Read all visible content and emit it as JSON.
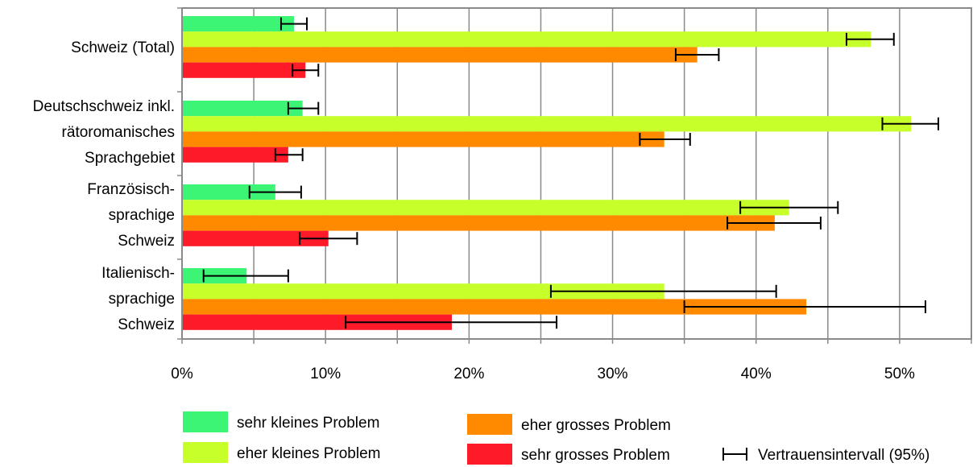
{
  "chart_data": {
    "type": "bar",
    "orientation": "horizontal",
    "grid": true,
    "xlim": [
      0,
      55
    ],
    "xticks": [
      0,
      10,
      20,
      30,
      40,
      50
    ],
    "tick_suffix": "%",
    "categories": [
      [
        "Schweiz (Total)"
      ],
      [
        "Deutschschweiz inkl.",
        "rätoromanisches",
        "Sprachgebiet"
      ],
      [
        "Französisch-",
        "sprachige",
        "Schweiz"
      ],
      [
        "Italienisch-",
        "sprachige",
        "Schweiz"
      ]
    ],
    "series": [
      {
        "name": "sehr kleines Problem",
        "color": "#3cf575",
        "values": [
          7.8,
          8.4,
          6.5,
          4.5
        ],
        "ci": [
          [
            6.9,
            8.7
          ],
          [
            7.4,
            9.5
          ],
          [
            4.7,
            8.3
          ],
          [
            1.5,
            7.4
          ]
        ]
      },
      {
        "name": "eher kleines Problem",
        "color": "#c6ff2a",
        "values": [
          48.0,
          50.8,
          42.3,
          33.6
        ],
        "ci": [
          [
            46.3,
            49.6
          ],
          [
            48.8,
            52.7
          ],
          [
            38.9,
            45.7
          ],
          [
            25.7,
            41.4
          ]
        ]
      },
      {
        "name": "eher grosses Problem",
        "color": "#ff8a00",
        "values": [
          35.9,
          33.6,
          41.3,
          43.5
        ],
        "ci": [
          [
            34.4,
            37.4
          ],
          [
            31.9,
            35.4
          ],
          [
            38.0,
            44.5
          ],
          [
            35.0,
            51.8
          ]
        ]
      },
      {
        "name": "sehr grosses Problem",
        "color": "#ff1a2a",
        "values": [
          8.6,
          7.4,
          10.2,
          18.8
        ],
        "ci": [
          [
            7.7,
            9.5
          ],
          [
            6.5,
            8.4
          ],
          [
            8.2,
            12.2
          ],
          [
            11.4,
            26.1
          ]
        ]
      }
    ],
    "ci_label": "Vertrauensintervall (95%)",
    "legend_placement": "bottom"
  }
}
